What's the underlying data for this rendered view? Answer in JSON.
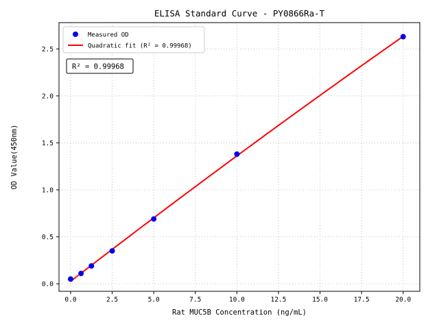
{
  "chart_data": {
    "type": "scatter",
    "title": "ELISA Standard Curve - PY0866Ra-T",
    "xlabel": "Rat MUC5B Concentration (ng/mL)",
    "ylabel": "OD Value(450nm)",
    "xlim": [
      -0.7,
      21.0
    ],
    "ylim": [
      -0.08,
      2.78
    ],
    "xticks": [
      0.0,
      2.5,
      5.0,
      7.5,
      10.0,
      12.5,
      15.0,
      17.5,
      20.0
    ],
    "xtick_labels": [
      "0.0",
      "2.5",
      "5.0",
      "7.5",
      "10.0",
      "12.5",
      "15.0",
      "17.5",
      "20.0"
    ],
    "yticks": [
      0.0,
      0.5,
      1.0,
      1.5,
      2.0,
      2.5
    ],
    "ytick_labels": [
      "0.0",
      "0.5",
      "1.0",
      "1.5",
      "2.0",
      "2.5"
    ],
    "grid": true,
    "legend_position": "upper-left",
    "series": [
      {
        "name": "Measured OD",
        "type": "scatter",
        "color": "#0000ee",
        "x": [
          0,
          0.625,
          1.25,
          2.5,
          5,
          10,
          20
        ],
        "y": [
          0.05,
          0.11,
          0.19,
          0.35,
          0.69,
          1.38,
          2.63
        ]
      },
      {
        "name": "Quadratic fit (R² = 0.99968)",
        "type": "line",
        "fit": "quadratic",
        "color": "#ff0000"
      }
    ],
    "annotation": "R² = 0.99968",
    "colors": {
      "grid": "#b0b0b0",
      "axis": "#000000",
      "marker": "#0000ee",
      "fit_line": "#ff0000",
      "legend_border": "#cccccc",
      "annotation_border": "#000000"
    }
  }
}
